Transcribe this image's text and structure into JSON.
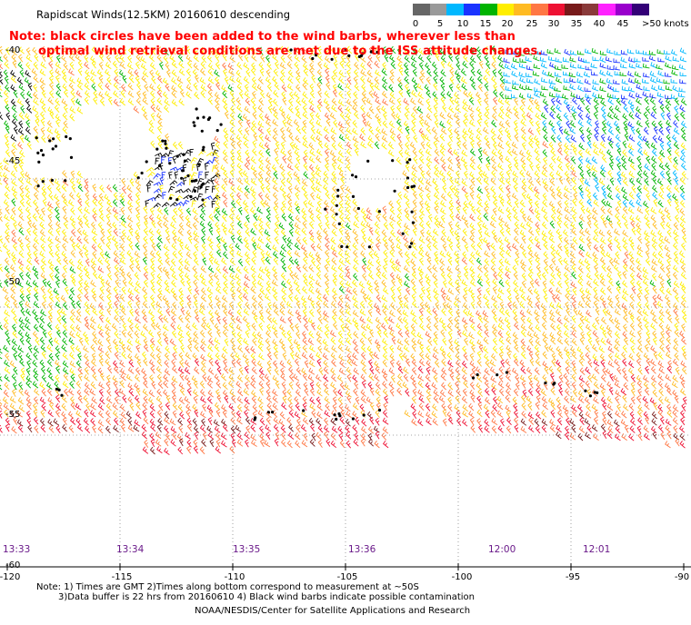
{
  "title": "Rapidscat Winds(12.5KM) 20160610 descending",
  "note": {
    "line1": "Note: black circles have been added to the wind barbs, wherever less than",
    "line2": "optimal wind retrieval conditions are met due to the ISS attitude changes."
  },
  "colorbar": {
    "colors": [
      "#666666",
      "#9a9a9a",
      "#00b8ff",
      "#1a33ff",
      "#00b400",
      "#ffee00",
      "#ffbb22",
      "#ff7744",
      "#ee1133",
      "#771a1a",
      "#8a3a3a",
      "#ff22ff",
      "#9900cc",
      "#330077"
    ],
    "labels": [
      "0",
      "5",
      "10",
      "15",
      "20",
      "25",
      "30",
      "35",
      "40",
      "45",
      ">50 knots"
    ]
  },
  "map": {
    "lon_labels": [
      "-120",
      "-115",
      "-110",
      "-105",
      "-100",
      "-95",
      "-90"
    ],
    "lat_labels": [
      "-40",
      "-45",
      "-50",
      "-55",
      "-60"
    ],
    "time_labels": [
      "13:33",
      "13:34",
      "13:35",
      "13:36",
      "12:00",
      "12:01"
    ]
  },
  "footer": {
    "line1": "Note: 1) Times are GMT 2)Times along bottom correspond to measurement at ~50S",
    "line2": "3)Data buffer is 22 hrs from 20160610 4) Black wind barbs indicate possible contamination",
    "line3": "NOAA/NESDIS/Center for Satellite Applications and Research"
  }
}
